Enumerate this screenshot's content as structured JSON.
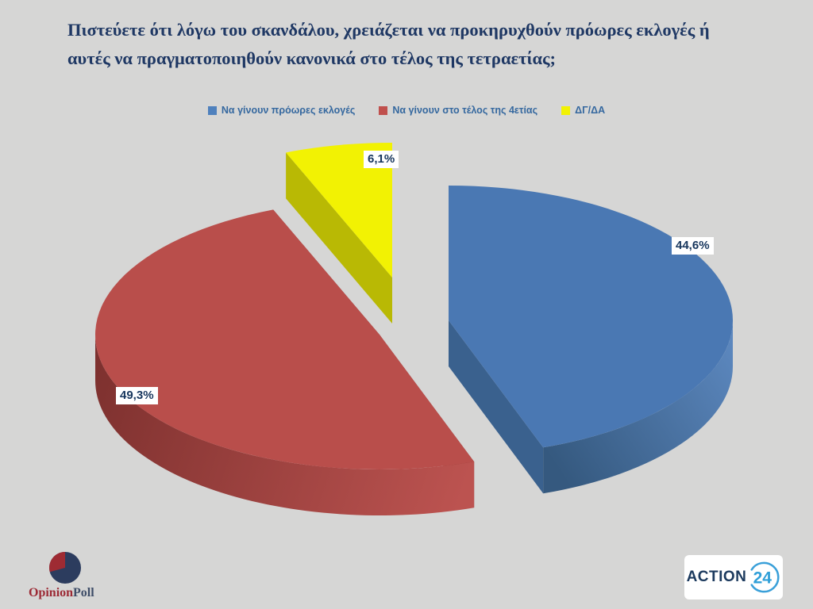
{
  "page": {
    "background": "#d6d6d5"
  },
  "header": {
    "title_line1": "Πιστεύετε ότι λόγω του σκανδάλου, χρειάζεται να προκηρυχθούν πρόωρες εκλογές ή",
    "title_line2": "αυτές να πραγματοποιηθούν κανονικά στο τέλος της τετραετίας;",
    "color": "#1f3864"
  },
  "legend": {
    "text_color": "#35689f",
    "items": [
      {
        "label": "Να γίνουν πρόωρες εκλογές",
        "color": "#4f81bd"
      },
      {
        "label": "Να γίνουν στο τέλος της 4ετίας",
        "color": "#c0504d"
      },
      {
        "label": "ΔΓ/ΔΑ",
        "color": "#f2f203"
      }
    ]
  },
  "chart_data": {
    "type": "pie",
    "style": "3d-exploded",
    "title": "Πιστεύετε ότι λόγω του σκανδάλου, χρειάζεται να προκηρυχθούν πρόωρες εκλογές ή αυτές να πραγματοποιηθούν κανονικά στο τέλος της τετραετίας;",
    "legend_position": "top",
    "start_angle_deg": 0,
    "label_color": "#17365d",
    "slices": [
      {
        "label": "Να γίνουν πρόωρες εκλογές",
        "value": 44.6,
        "display": "44,6%",
        "top_color": "#4a78b3",
        "side_color": "#3a618e",
        "rim_dark": "#35597f",
        "rim_light": "#5e8ac2"
      },
      {
        "label": "Να γίνουν στο τέλος της 4ετίας",
        "value": 49.3,
        "display": "49,3%",
        "top_color": "#b94e4b",
        "side_color": "#8e3a37",
        "rim_dark": "#7c302e",
        "rim_light": "#bc5350"
      },
      {
        "label": "ΔΓ/ΔΑ",
        "value": 6.1,
        "display": "6,1%",
        "top_color": "#f2f203",
        "side_color": "#b9b904",
        "rim_dark": "#a8a800",
        "rim_light": "#d6d600"
      }
    ]
  },
  "footer": {
    "opinionpoll": {
      "word1": "Opinion",
      "word1_color": "#9c2a35",
      "word2": "Poll",
      "word2_color": "#3e4d68",
      "pie_navy": "#2c3c5e",
      "pie_red": "#9e2b33"
    },
    "action24": {
      "word": "ACTION",
      "word_color": "#1c3a5e",
      "number": "24",
      "accent_color": "#2f9fd8"
    }
  }
}
